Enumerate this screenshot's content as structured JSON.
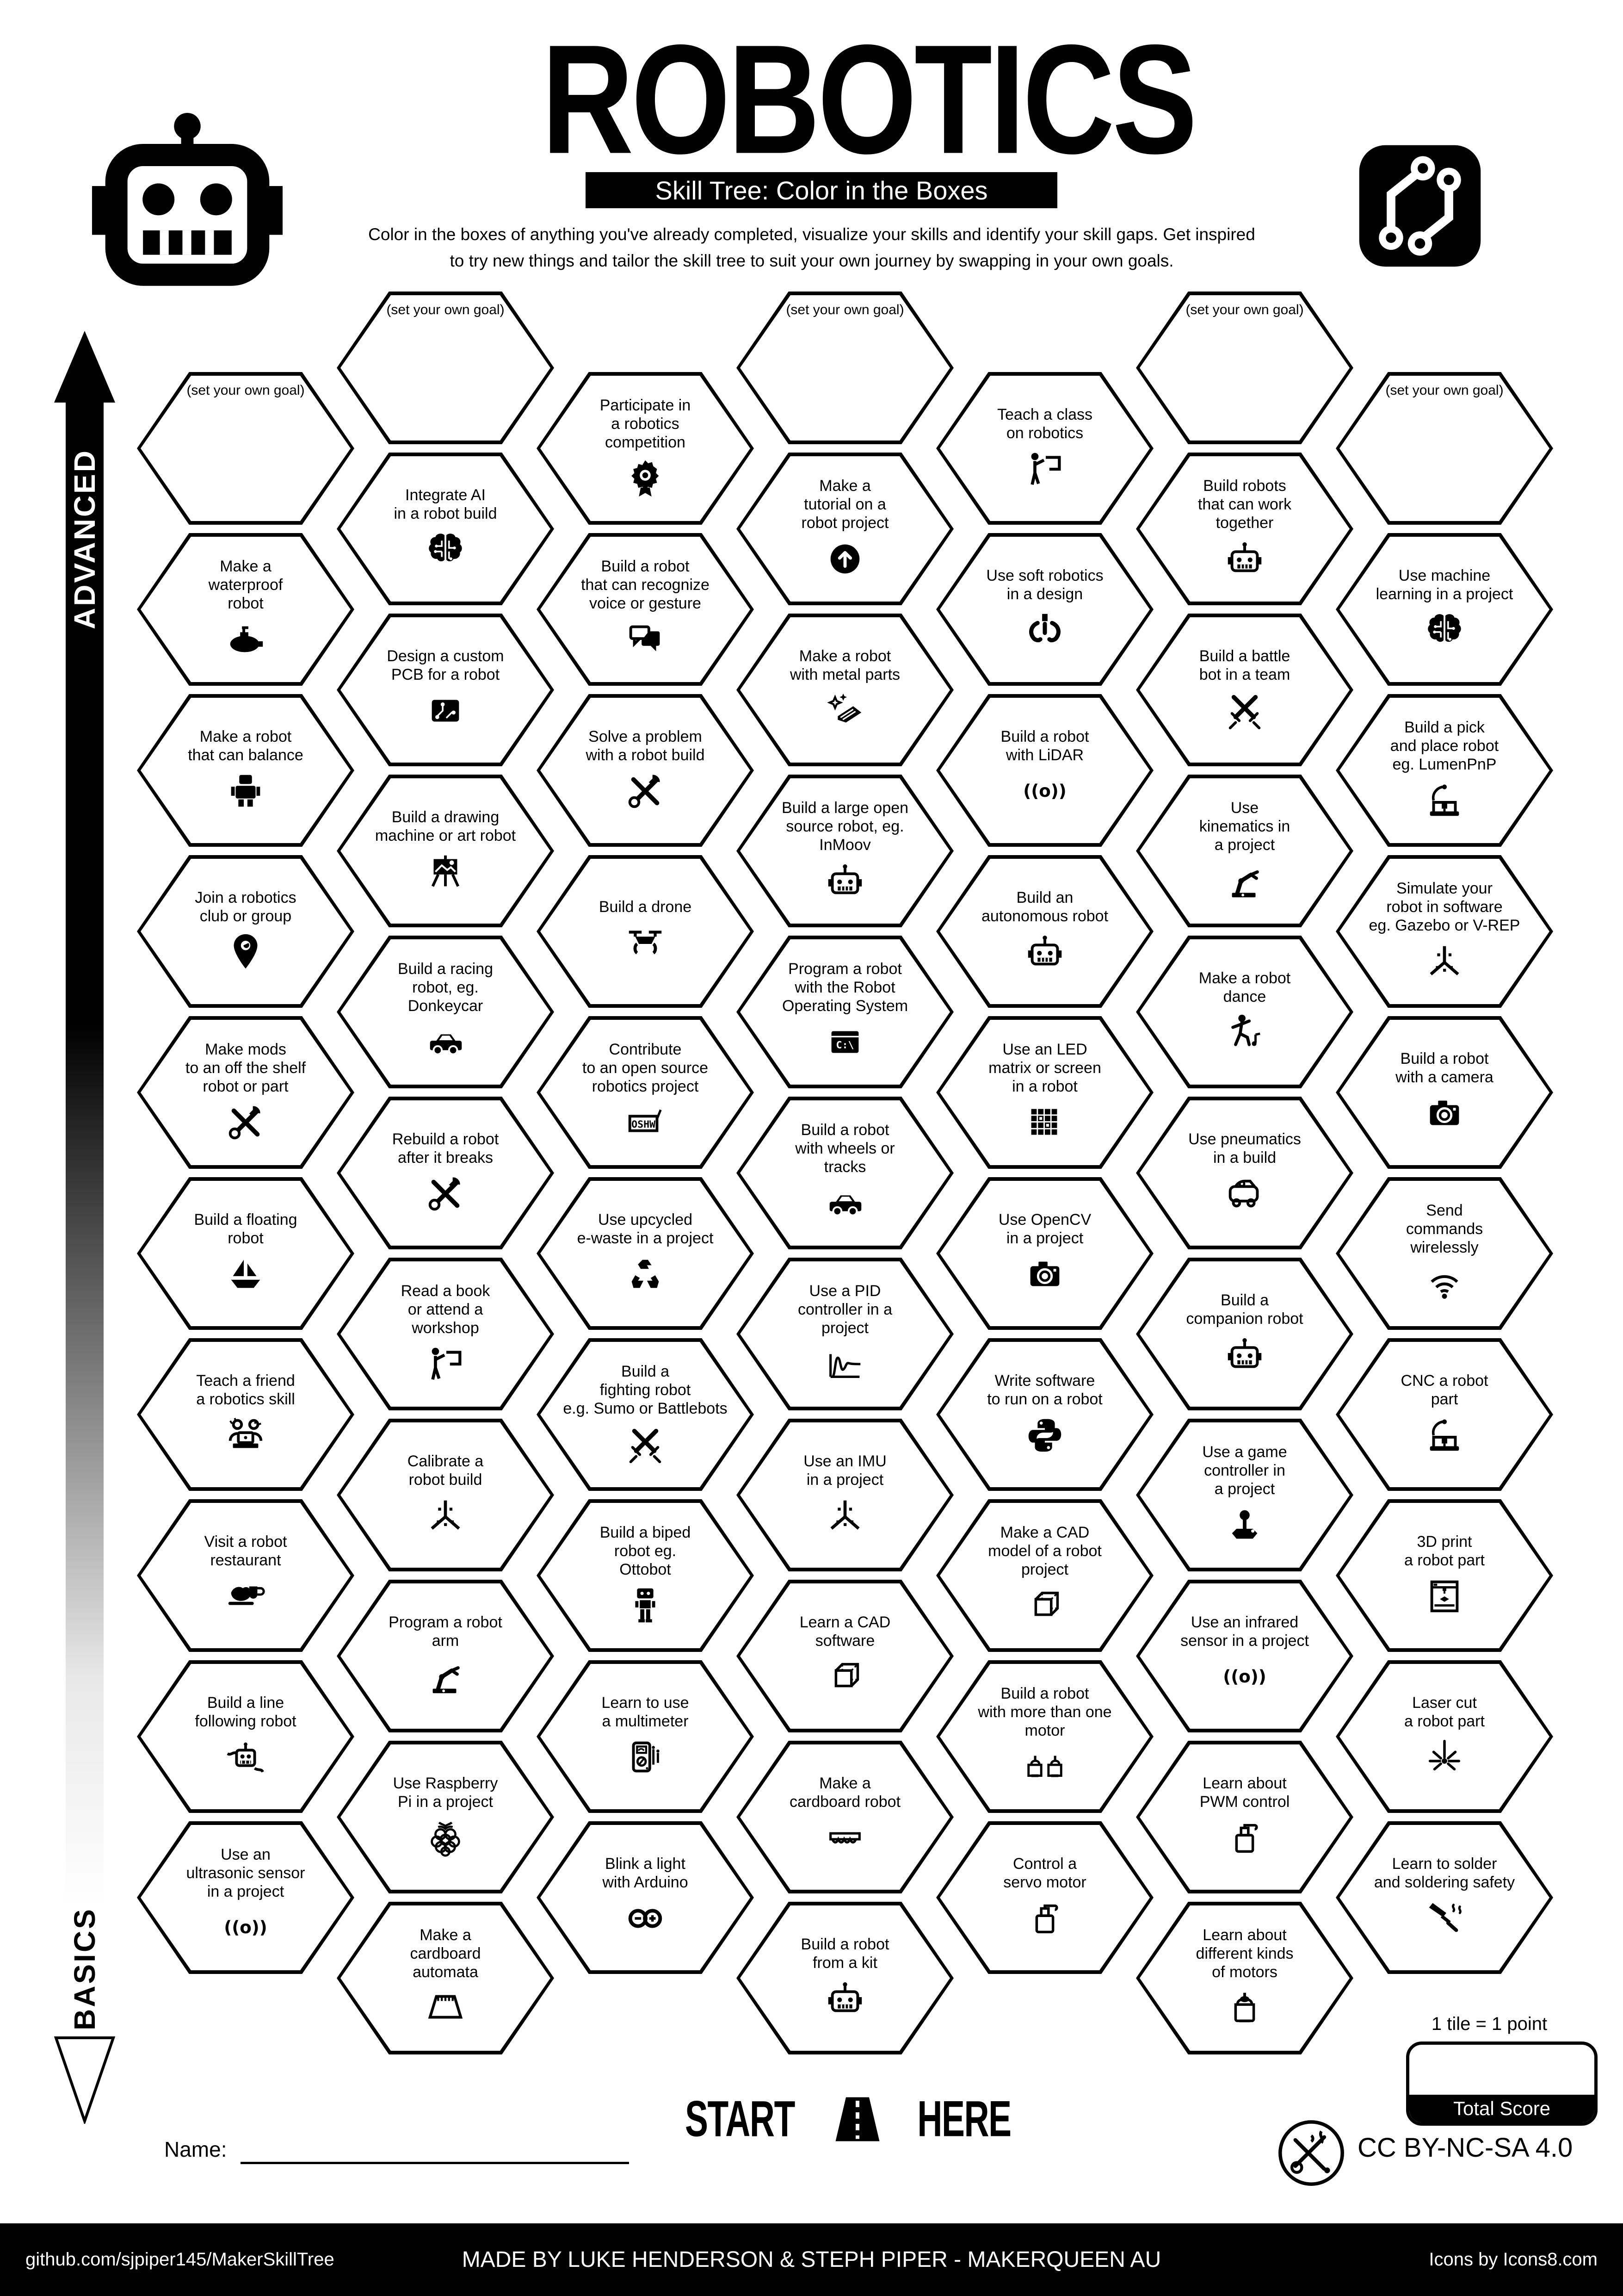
{
  "header": {
    "title": "ROBOTICS",
    "subtitle": "Skill Tree: Color in the Boxes",
    "description": "Color in the boxes of anything you've already completed, visualize your skills and identify your skill gaps.  Get inspired\nto try new things and tailor the skill tree to suit your own journey by swapping in your own goals.",
    "logo_left": "robot-logo",
    "logo_right": "circuit-logo"
  },
  "axis": {
    "top_label": "ADVANCED",
    "bottom_label": "BASICS"
  },
  "grid": {
    "columns": [
      {
        "tiles": [
          {
            "label": "(set your own goal)",
            "icon": ""
          },
          {
            "label": "Make a\nwaterproof\nrobot",
            "icon": "submarine-icon"
          },
          {
            "label": "Make a robot\nthat can balance",
            "icon": "standing-robot-icon"
          },
          {
            "label": "Join a robotics\nclub or group",
            "icon": "map-pin-icon"
          },
          {
            "label": "Make mods\nto an off the shelf\nrobot or part",
            "icon": "tools-icon"
          },
          {
            "label": "Build a floating\nrobot",
            "icon": "sailboat-icon"
          },
          {
            "label": "Teach a friend\na robotics skill",
            "icon": "people-laptop-icon"
          },
          {
            "label": "Visit a robot\nrestaurant",
            "icon": "food-serving-icon"
          },
          {
            "label": "Build a line\nfollowing robot",
            "icon": "line-robot-icon"
          },
          {
            "label": "Use an\nultrasonic sensor\nin a project",
            "icon": "sensor-waves-icon"
          }
        ]
      },
      {
        "tiles": [
          {
            "label": "(set your own goal)",
            "icon": ""
          },
          {
            "label": "Integrate AI\nin a robot build",
            "icon": "ai-brain-icon"
          },
          {
            "label": "Design a custom\nPCB for a robot",
            "icon": "pcb-icon"
          },
          {
            "label": "Build a drawing\nmachine or art robot",
            "icon": "easel-icon"
          },
          {
            "label": "Build a racing\nrobot, eg.\nDonkeycar",
            "icon": "car-icon"
          },
          {
            "label": "Rebuild a robot\nafter it breaks",
            "icon": "tools-icon"
          },
          {
            "label": "Read a book\nor attend a\nworkshop",
            "icon": "presenter-icon"
          },
          {
            "label": "Calibrate a\nrobot build",
            "icon": "calibration-axes-icon"
          },
          {
            "label": "Program a robot\narm",
            "icon": "robot-arm-icon"
          },
          {
            "label": "Use Raspberry\nPi in a project",
            "icon": "raspberry-icon"
          },
          {
            "label": "Make a\ncardboard\nautomata",
            "icon": "cardboard-automata-icon"
          }
        ]
      },
      {
        "tiles": [
          {
            "label": "Participate in\na robotics\ncompetition",
            "icon": "award-icon"
          },
          {
            "label": "Build a robot\nthat can recognize\nvoice or gesture",
            "icon": "speech-bubbles-icon"
          },
          {
            "label": "Solve a problem\nwith a robot build",
            "icon": "tools-icon"
          },
          {
            "label": "Build a drone",
            "icon": "drone-icon"
          },
          {
            "label": "Contribute\nto an open source\nrobotics project",
            "icon": "oshw-icon"
          },
          {
            "label": "Use upcycled\ne-waste in a project",
            "icon": "recycle-icon"
          },
          {
            "label": "Build a\nfighting robot\ne.g. Sumo or Battlebots",
            "icon": "crossed-swords-icon"
          },
          {
            "label": "Build a biped\nrobot eg.\nOttobot",
            "icon": "biped-robot-icon"
          },
          {
            "label": "Learn to use\na multimeter",
            "icon": "multimeter-icon"
          },
          {
            "label": "Blink a light\nwith Arduino",
            "icon": "arduino-icon"
          }
        ]
      },
      {
        "tiles": [
          {
            "label": "(set your own goal)",
            "icon": ""
          },
          {
            "label": "Make a\ntutorial on a\nrobot project",
            "icon": "upload-circle-icon"
          },
          {
            "label": "Make a robot\nwith metal parts",
            "icon": "metal-sparkle-icon"
          },
          {
            "label": "Build a large open\nsource robot, eg.\nInMoov",
            "icon": "robot-head-icon"
          },
          {
            "label": "Program a robot\nwith the Robot\nOperating System",
            "icon": "terminal-icon"
          },
          {
            "label": "Build a robot\nwith wheels or\ntracks",
            "icon": "car-icon"
          },
          {
            "label": "Use a PID\ncontroller in a\nproject",
            "icon": "pid-curve-icon"
          },
          {
            "label": "Use an IMU\nin a project",
            "icon": "calibration-axes-icon"
          },
          {
            "label": "Learn a CAD\nsoftware",
            "icon": "cad-cube-icon"
          },
          {
            "label": "Make a\ncardboard robot",
            "icon": "cardboard-strip-icon"
          },
          {
            "label": "Build a robot\nfrom a kit",
            "icon": "robot-head-icon"
          }
        ]
      },
      {
        "tiles": [
          {
            "label": "Teach a class\non robotics",
            "icon": "presenter-icon"
          },
          {
            "label": "Use soft robotics\nin a design",
            "icon": "soft-gripper-icon"
          },
          {
            "label": "Build a robot\nwith LiDAR",
            "icon": "sensor-waves-icon"
          },
          {
            "label": "Build an\nautonomous robot",
            "icon": "robot-head-icon"
          },
          {
            "label": "Use an LED\nmatrix or screen\nin a robot",
            "icon": "led-matrix-icon"
          },
          {
            "label": "Use OpenCV\nin a project",
            "icon": "camera-icon"
          },
          {
            "label": "Write software\nto run on a robot",
            "icon": "python-icon"
          },
          {
            "label": "Make a CAD\nmodel of a robot\nproject",
            "icon": "cad-cube-icon"
          },
          {
            "label": "Build a robot\nwith more than one\nmotor",
            "icon": "two-motors-icon"
          },
          {
            "label": "Control a\nservo motor",
            "icon": "servo-icon"
          }
        ]
      },
      {
        "tiles": [
          {
            "label": "(set your own goal)",
            "icon": ""
          },
          {
            "label": "Build robots\nthat can work\ntogether",
            "icon": "robot-head-icon"
          },
          {
            "label": "Build a battle\nbot in a team",
            "icon": "crossed-swords-icon"
          },
          {
            "label": "Use\nkinematics in\na project",
            "icon": "robot-arm-icon"
          },
          {
            "label": "Make a robot\ndance",
            "icon": "dancing-person-icon"
          },
          {
            "label": "Use pneumatics\nin a build",
            "icon": "pneumatic-vehicle-icon"
          },
          {
            "label": "Build a\ncompanion robot",
            "icon": "robot-head-icon"
          },
          {
            "label": "Use a game\ncontroller in\na project",
            "icon": "joystick-icon"
          },
          {
            "label": "Use an infrared\nsensor in a project",
            "icon": "sensor-waves-icon"
          },
          {
            "label": "Learn about\nPWM control",
            "icon": "servo-icon"
          },
          {
            "label": "Learn about\ndifferent kinds\nof motors",
            "icon": "motor-icon"
          }
        ]
      },
      {
        "tiles": [
          {
            "label": "(set your own goal)",
            "icon": ""
          },
          {
            "label": "Use machine\nlearning in a project",
            "icon": "ai-brain-icon"
          },
          {
            "label": "Build a pick\nand place robot\neg. LumenPnP",
            "icon": "cnc-machine-icon"
          },
          {
            "label": "Simulate your\nrobot in software\neg. Gazebo or V-REP",
            "icon": "calibration-axes-icon"
          },
          {
            "label": "Build a robot\nwith a camera",
            "icon": "camera-icon"
          },
          {
            "label": "Send\ncommands\nwirelessly",
            "icon": "wifi-icon"
          },
          {
            "label": "CNC a robot\npart",
            "icon": "cnc-machine-icon"
          },
          {
            "label": "3D print\na robot part",
            "icon": "printer-3d-icon"
          },
          {
            "label": "Laser cut\na robot part",
            "icon": "laser-icon"
          },
          {
            "label": "Learn to solder\nand soldering safety",
            "icon": "soldering-iron-icon"
          }
        ]
      }
    ]
  },
  "bottom": {
    "start_left": "START",
    "start_right": "HERE",
    "road_icon": "road-icon",
    "name_label": "Name:",
    "points_note": "1 tile = 1 point",
    "total_score_label": "Total Score",
    "license": "CC BY-NC-SA 4.0",
    "maker_badge_icon": "maker-badge"
  },
  "footer": {
    "left": "github.com/sjpiper145/MakerSkillTree",
    "center": "MADE BY LUKE HENDERSON & STEPH PIPER  -  MAKERQUEEN AU",
    "right": "Icons by Icons8.com"
  }
}
